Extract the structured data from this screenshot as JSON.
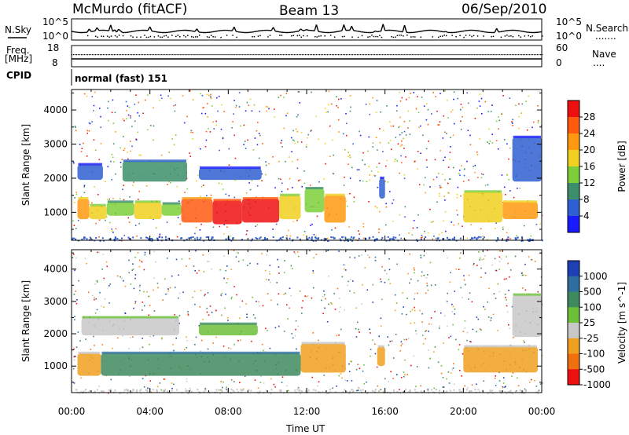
{
  "header": {
    "station": "McMurdo (fitACF)",
    "beam": "Beam 13",
    "date": "06/Sep/2010"
  },
  "strips": {
    "nsky": {
      "label": "N.Sky",
      "ticks": [
        "10^5",
        "10^0"
      ],
      "right_ticks": [
        "10^5",
        "10^0"
      ],
      "right_label": "N.Search",
      "right_label_decor": "......."
    },
    "freq": {
      "label_line1": "Freq.",
      "label_line2": "[MHz]",
      "ticks": [
        "18",
        "8"
      ],
      "right_ticks": [
        "60",
        "0"
      ],
      "right_label": "Nave",
      "right_label_decor": "...."
    },
    "cpid": {
      "label": "CPID",
      "value": "normal (fast) 151"
    }
  },
  "chart_data": [
    {
      "type": "heatmap",
      "title": "",
      "ylabel": "Slant Range [km]",
      "xlabel": "",
      "yticks": [
        1000,
        2000,
        3000,
        4000
      ],
      "xticks": [
        "00:00",
        "04:00",
        "08:00",
        "12:00",
        "16:00",
        "20:00",
        "00:00"
      ],
      "xlim_hours": [
        0,
        24
      ],
      "ylim_km": [
        180,
        4600
      ],
      "colorbar": {
        "label": "Power [dB]",
        "ticks": [
          "4",
          "8",
          "12",
          "16",
          "20",
          "24",
          "28"
        ],
        "levels": [
          "#1a1aff",
          "#2f5fd0",
          "#3c8f6a",
          "#7ccf3a",
          "#f0d020",
          "#ff9a10",
          "#ff5a10",
          "#ee1010"
        ]
      },
      "regions": [
        {
          "t": [
            0.3,
            0.9
          ],
          "r": [
            800,
            1400
          ],
          "level": 5
        },
        {
          "t": [
            0.9,
            1.8
          ],
          "r": [
            800,
            1200
          ],
          "level": 4
        },
        {
          "t": [
            1.8,
            3.2
          ],
          "r": [
            900,
            1300
          ],
          "level": 3
        },
        {
          "t": [
            3.2,
            4.6
          ],
          "r": [
            800,
            1300
          ],
          "level": 4
        },
        {
          "t": [
            4.6,
            5.6
          ],
          "r": [
            900,
            1250
          ],
          "level": 3
        },
        {
          "t": [
            5.6,
            7.2
          ],
          "r": [
            700,
            1400
          ],
          "level": 6
        },
        {
          "t": [
            7.2,
            8.7
          ],
          "r": [
            650,
            1350
          ],
          "level": 7
        },
        {
          "t": [
            8.7,
            10.6
          ],
          "r": [
            700,
            1400
          ],
          "level": 7
        },
        {
          "t": [
            10.6,
            11.7
          ],
          "r": [
            800,
            1500
          ],
          "level": 4
        },
        {
          "t": [
            11.9,
            12.9
          ],
          "r": [
            1000,
            1700
          ],
          "level": 3
        },
        {
          "t": [
            12.9,
            14.0
          ],
          "r": [
            700,
            1500
          ],
          "level": 5
        },
        {
          "t": [
            20.0,
            22.0
          ],
          "r": [
            700,
            1600
          ],
          "level": 4
        },
        {
          "t": [
            22.0,
            23.8
          ],
          "r": [
            800,
            1300
          ],
          "level": 5
        },
        {
          "t": [
            0.3,
            1.6
          ],
          "r": [
            1950,
            2400
          ],
          "level": 1
        },
        {
          "t": [
            2.6,
            5.9
          ],
          "r": [
            1900,
            2500
          ],
          "level": 2
        },
        {
          "t": [
            6.5,
            9.7
          ],
          "r": [
            1950,
            2300
          ],
          "level": 1
        },
        {
          "t": [
            22.5,
            24.0
          ],
          "r": [
            1900,
            3200
          ],
          "level": 1
        },
        {
          "t": [
            15.7,
            16.0
          ],
          "r": [
            1400,
            2000
          ],
          "level": 1
        }
      ]
    },
    {
      "type": "heatmap",
      "title": "",
      "ylabel": "Slant Range [km]",
      "xlabel": "Time UT",
      "yticks": [
        1000,
        2000,
        3000,
        4000
      ],
      "xticks": [
        "00:00",
        "04:00",
        "08:00",
        "12:00",
        "16:00",
        "20:00",
        "00:00"
      ],
      "xlim_hours": [
        0,
        24
      ],
      "ylim_km": [
        180,
        4600
      ],
      "colorbar": {
        "label": "Velocity [m s^-1]",
        "ticks": [
          "1000",
          "500",
          "100",
          "25",
          "-25",
          "-100",
          "-500",
          "-1000"
        ],
        "levels": [
          "#1f3fb5",
          "#2f6fa0",
          "#3e8a5e",
          "#6cc03a",
          "#c8c8c8",
          "#f0a020",
          "#f07010",
          "#ee1010"
        ]
      },
      "regions": [
        {
          "t": [
            0.3,
            1.5
          ],
          "r": [
            700,
            1400
          ],
          "level": 5
        },
        {
          "t": [
            1.5,
            11.7
          ],
          "r": [
            700,
            1400
          ],
          "level": 2
        },
        {
          "t": [
            11.7,
            14.0
          ],
          "r": [
            800,
            1700
          ],
          "level": 5
        },
        {
          "t": [
            15.6,
            16.0
          ],
          "r": [
            1000,
            1600
          ],
          "level": 5
        },
        {
          "t": [
            20.0,
            23.8
          ],
          "r": [
            800,
            1600
          ],
          "level": 5
        },
        {
          "t": [
            0.5,
            5.5
          ],
          "r": [
            1950,
            2500
          ],
          "level": 4
        },
        {
          "t": [
            22.5,
            24.0
          ],
          "r": [
            1900,
            3200
          ],
          "level": 4
        },
        {
          "t": [
            6.5,
            9.5
          ],
          "r": [
            1950,
            2300
          ],
          "level": 3
        }
      ]
    }
  ]
}
